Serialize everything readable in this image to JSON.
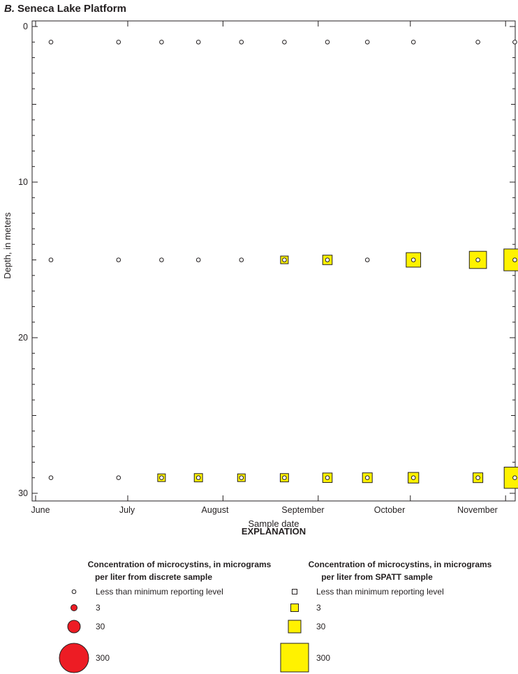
{
  "panel": {
    "letter": "B.",
    "name": "Seneca Lake Platform"
  },
  "chart_data": {
    "type": "scatter",
    "xlabel": "Sample date",
    "ylabel": "Depth, in meters",
    "x_ticks": [
      "June",
      "July",
      "August",
      "September",
      "October",
      "November"
    ],
    "y_ticks": [
      0,
      10,
      20,
      30
    ],
    "ylim": [
      0,
      30
    ],
    "y_inverted": true,
    "colors": {
      "discrete": "#ed1c24",
      "spatt": "#fff200",
      "outline": "#231f20"
    },
    "dates": [
      "06-06",
      "06-28",
      "07-12",
      "07-24",
      "08-07",
      "08-21",
      "09-04",
      "09-17",
      "10-02",
      "10-23",
      "11-04"
    ],
    "discrete_series": [
      {
        "name": "Less than minimum reporting level",
        "depth": 1,
        "values": [
          "<MRL",
          "<MRL",
          "<MRL",
          "<MRL",
          "<MRL",
          "<MRL",
          "<MRL",
          "<MRL",
          "<MRL",
          "<MRL",
          "<MRL"
        ]
      },
      {
        "name": "Less than minimum reporting level",
        "depth": 15,
        "values": [
          "<MRL",
          "<MRL",
          "<MRL",
          "<MRL",
          "<MRL",
          "<MRL",
          "<MRL",
          "<MRL",
          "<MRL",
          "<MRL",
          "<MRL"
        ]
      },
      {
        "name": "Less than minimum reporting level",
        "depth": 29,
        "values": [
          "<MRL",
          "<MRL",
          "<MRL",
          "<MRL",
          "<MRL",
          "<MRL",
          "<MRL",
          "<MRL",
          "<MRL",
          "<MRL",
          "<MRL"
        ]
      }
    ],
    "spatt_series": [
      {
        "depth": 15,
        "values": [
          null,
          null,
          null,
          null,
          null,
          3,
          7,
          null,
          40,
          60,
          120
        ]
      },
      {
        "depth": 29,
        "values": [
          null,
          null,
          3,
          4,
          3,
          4,
          7,
          8,
          12,
          8,
          110
        ]
      }
    ]
  },
  "explanation": {
    "title": "EXPLANATION",
    "discrete_head_1": "Concentration of microcystins, in micrograms",
    "discrete_head_2": "per liter from discrete sample",
    "spatt_head_1": "Concentration of microcystins, in micrograms",
    "spatt_head_2": "per liter from SPATT sample",
    "mrl_label": "Less than minimum reporting level",
    "levels": [
      "3",
      "30",
      "300"
    ]
  }
}
